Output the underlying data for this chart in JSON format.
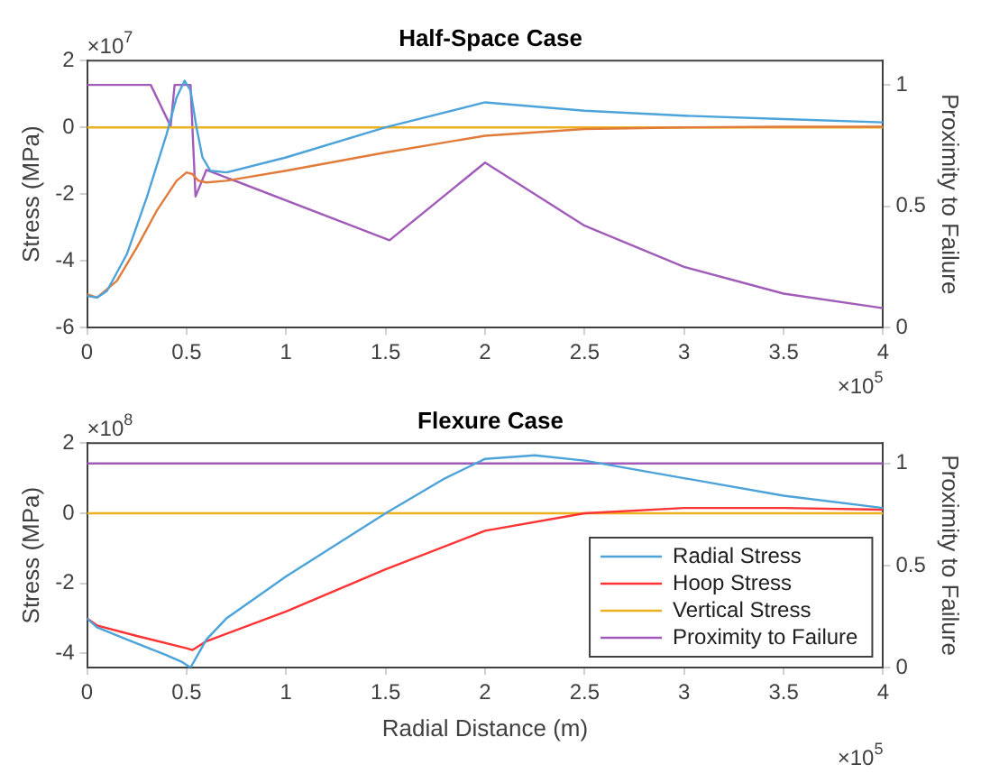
{
  "chart_data": [
    {
      "type": "line",
      "title": "Half-Space Case",
      "ylabel": "Stress (MPa)",
      "y2label": "Proximity to Failure",
      "xlim": [
        0,
        4
      ],
      "xticks": [
        0,
        0.5,
        1,
        1.5,
        2,
        2.5,
        3,
        3.5,
        4
      ],
      "ylim": [
        -6,
        2
      ],
      "yticks": [
        -6,
        -4,
        -2,
        0,
        2
      ],
      "y2lim": [
        0,
        1.1
      ],
      "y2ticks": [
        0,
        0.5,
        1
      ],
      "grid": false,
      "legend": false,
      "line_style": "solid",
      "annotations": [
        "×10$^{7}$",
        "×10$^{5}$"
      ],
      "series": [
        {
          "color": "#4ba3d9",
          "x": [
            0,
            0.05,
            0.1,
            0.2,
            0.3,
            0.4,
            0.45,
            0.49,
            0.52,
            0.55,
            0.58,
            0.62,
            0.7,
            1,
            1.5,
            2,
            2.5,
            3,
            3.5,
            4
          ],
          "values": [
            -5.05,
            -5.1,
            -4.9,
            -3.8,
            -2.1,
            -0.2,
            0.9,
            1.4,
            1.1,
            0,
            -0.9,
            -1.3,
            -1.35,
            -0.9,
            0,
            0.75,
            0.5,
            0.35,
            0.25,
            0.15
          ]
        },
        {
          "color": "#e07b39",
          "x": [
            0,
            0.05,
            0.15,
            0.25,
            0.35,
            0.45,
            0.5,
            0.53,
            0.56,
            0.6,
            0.7,
            1,
            1.5,
            2,
            2.5,
            3,
            3.5,
            4
          ],
          "values": [
            -5.0,
            -5.1,
            -4.6,
            -3.6,
            -2.5,
            -1.6,
            -1.35,
            -1.4,
            -1.6,
            -1.65,
            -1.6,
            -1.3,
            -0.75,
            -0.25,
            -0.05,
            0,
            0.02,
            0.02
          ]
        },
        {
          "color": "#edb120",
          "x": [
            0,
            4
          ],
          "values": [
            0,
            0
          ]
        },
        {
          "color": "#a05cb8",
          "axis": "y2",
          "x": [
            0,
            0.32,
            0.42,
            0.44,
            0.52,
            0.545,
            0.6,
            1.52,
            2,
            2.5,
            3,
            3.5,
            4
          ],
          "values": [
            1,
            1,
            0.83,
            1,
            1,
            0.54,
            0.65,
            0.36,
            0.68,
            0.42,
            0.25,
            0.14,
            0.08
          ]
        }
      ]
    },
    {
      "type": "line",
      "title": "Flexure Case",
      "xlabel": "Radial Distance (m)",
      "ylabel": "Stress (MPa)",
      "y2label": "Proximity to Failure",
      "xlim": [
        0,
        4
      ],
      "xticks": [
        0,
        0.5,
        1,
        1.5,
        2,
        2.5,
        3,
        3.5,
        4
      ],
      "ylim": [
        -4.4,
        2
      ],
      "yticks": [
        -4,
        -2,
        0,
        2
      ],
      "y2lim": [
        0,
        1.1
      ],
      "y2ticks": [
        0,
        0.5,
        1
      ],
      "grid": false,
      "legend": "bottom right",
      "line_style": "solid",
      "annotations": [
        "×10$^{8}$",
        "×10$^{5}$"
      ],
      "series": [
        {
          "name": "Radial Stress",
          "color": "#4ba3d9",
          "x": [
            0,
            0.05,
            0.2,
            0.4,
            0.48,
            0.52,
            0.6,
            0.7,
            1,
            1.5,
            1.8,
            2,
            2.25,
            2.5,
            3,
            3.5,
            4
          ],
          "values": [
            -3.0,
            -3.25,
            -3.6,
            -4.05,
            -4.25,
            -4.4,
            -3.6,
            -3.0,
            -1.8,
            0,
            1.0,
            1.55,
            1.65,
            1.5,
            1.0,
            0.5,
            0.15
          ]
        },
        {
          "name": "Hoop Stress",
          "color": "#ff3333",
          "x": [
            0,
            0.05,
            0.25,
            0.5,
            0.53,
            0.6,
            1,
            1.5,
            2,
            2.5,
            3,
            3.5,
            4
          ],
          "values": [
            -3.0,
            -3.2,
            -3.5,
            -3.85,
            -3.9,
            -3.65,
            -2.8,
            -1.6,
            -0.5,
            0,
            0.15,
            0.15,
            0.1
          ]
        },
        {
          "name": "Vertical Stress",
          "color": "#edb120",
          "x": [
            0,
            4
          ],
          "values": [
            0,
            0
          ]
        },
        {
          "name": "Proximity to Failure",
          "color": "#a05cb8",
          "axis": "y2",
          "x": [
            0,
            4
          ],
          "values": [
            1,
            1
          ]
        }
      ]
    }
  ]
}
